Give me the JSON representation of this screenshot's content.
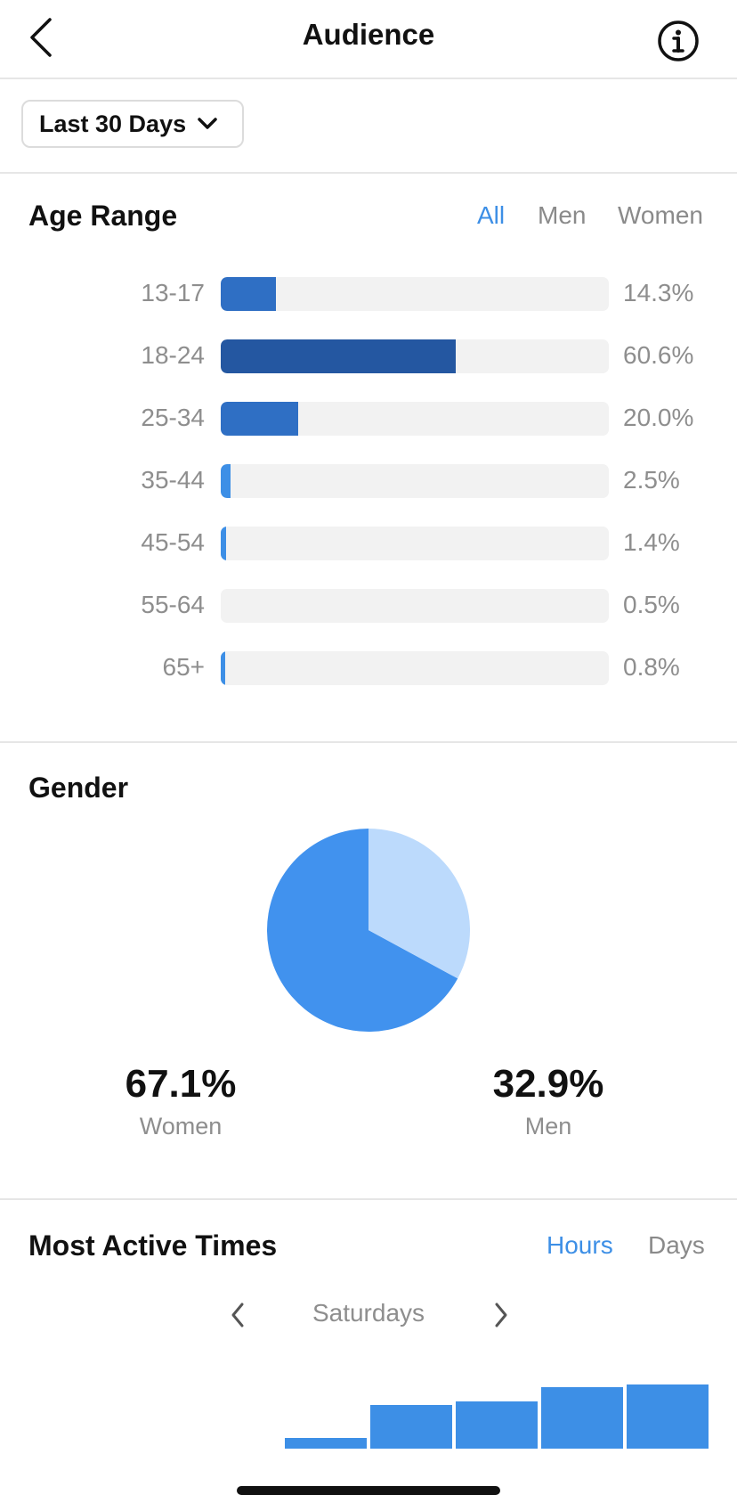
{
  "header": {
    "title": "Audience",
    "back_icon": "chevron-left-icon",
    "info_icon": "info-icon"
  },
  "date_range": {
    "label": "Last 30 Days",
    "icon": "chevron-down-icon"
  },
  "age_range": {
    "title": "Age Range",
    "filters": [
      {
        "label": "All",
        "active": true
      },
      {
        "label": "Men",
        "active": false
      },
      {
        "label": "Women",
        "active": false
      }
    ],
    "rows": [
      {
        "range": "13-17",
        "percent_label": "14.3%"
      },
      {
        "range": "18-24",
        "percent_label": "60.6%"
      },
      {
        "range": "25-34",
        "percent_label": "20.0%"
      },
      {
        "range": "35-44",
        "percent_label": "2.5%"
      },
      {
        "range": "45-54",
        "percent_label": "1.4%"
      },
      {
        "range": "55-64",
        "percent_label": "0.5%"
      },
      {
        "range": "65+",
        "percent_label": "0.8%"
      }
    ]
  },
  "gender": {
    "title": "Gender",
    "women": {
      "percent": "67.1%",
      "label": "Women"
    },
    "men": {
      "percent": "32.9%",
      "label": "Men"
    }
  },
  "active_times": {
    "title": "Most Active Times",
    "filters": [
      {
        "label": "Hours",
        "active": true
      },
      {
        "label": "Days",
        "active": false
      }
    ],
    "day": "Saturdays",
    "prev_icon": "chevron-left-icon",
    "next_icon": "chevron-right-icon"
  },
  "colors": {
    "accent": "#3d8fe6",
    "bar_dark": "#2457a1",
    "bar_mid": "#2f6fc4",
    "bar_light": "#3d8fe6",
    "women_slice": "#4192ee",
    "men_slice": "#bcdafc",
    "track": "#f2f2f2"
  },
  "chart_data": [
    {
      "type": "bar",
      "orientation": "horizontal",
      "categories": [
        "13-17",
        "18-24",
        "25-34",
        "35-44",
        "45-54",
        "55-64",
        "65+"
      ],
      "values": [
        14.3,
        60.6,
        20.0,
        2.5,
        1.4,
        0.5,
        0.8
      ],
      "xlim": [
        0,
        100
      ]
    },
    {
      "type": "pie",
      "categories": [
        "Women",
        "Men"
      ],
      "values": [
        67.1,
        32.9
      ]
    },
    {
      "type": "bar",
      "categories": [
        "",
        "",
        "",
        "",
        ""
      ],
      "values": [
        0.17,
        0.68,
        0.73,
        0.96,
        1.0
      ],
      "ylim": [
        0,
        1
      ]
    }
  ]
}
